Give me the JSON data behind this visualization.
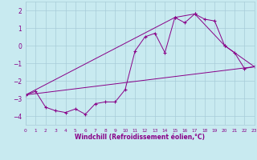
{
  "xlabel": "Windchill (Refroidissement éolien,°C)",
  "xlim": [
    0,
    23
  ],
  "ylim": [
    -4.5,
    2.5
  ],
  "yticks": [
    -4,
    -3,
    -2,
    -1,
    0,
    1,
    2
  ],
  "xticks": [
    0,
    1,
    2,
    3,
    4,
    5,
    6,
    7,
    8,
    9,
    10,
    11,
    12,
    13,
    14,
    15,
    16,
    17,
    18,
    19,
    20,
    21,
    22,
    23
  ],
  "bg_color": "#c8eaf0",
  "grid_color": "#a8ccd8",
  "line_color": "#880088",
  "line1_x": [
    0,
    1,
    2,
    3,
    4,
    5,
    6,
    7,
    8,
    9,
    10,
    11,
    12,
    13,
    14,
    15,
    16,
    17,
    18,
    19,
    20,
    21,
    22,
    23
  ],
  "line1_y": [
    -2.8,
    -2.6,
    -3.5,
    -3.7,
    -3.8,
    -3.6,
    -3.9,
    -3.3,
    -3.2,
    -3.2,
    -2.5,
    -0.3,
    0.5,
    0.7,
    -0.4,
    1.6,
    1.3,
    1.8,
    1.5,
    1.4,
    0.0,
    -0.4,
    -1.3,
    -1.2
  ],
  "line3_x": [
    0,
    23
  ],
  "line3_y": [
    -2.8,
    -1.2
  ],
  "line4_x": [
    0,
    15,
    17,
    20,
    23
  ],
  "line4_y": [
    -2.8,
    1.6,
    1.8,
    0.0,
    -1.2
  ],
  "marker": "+"
}
